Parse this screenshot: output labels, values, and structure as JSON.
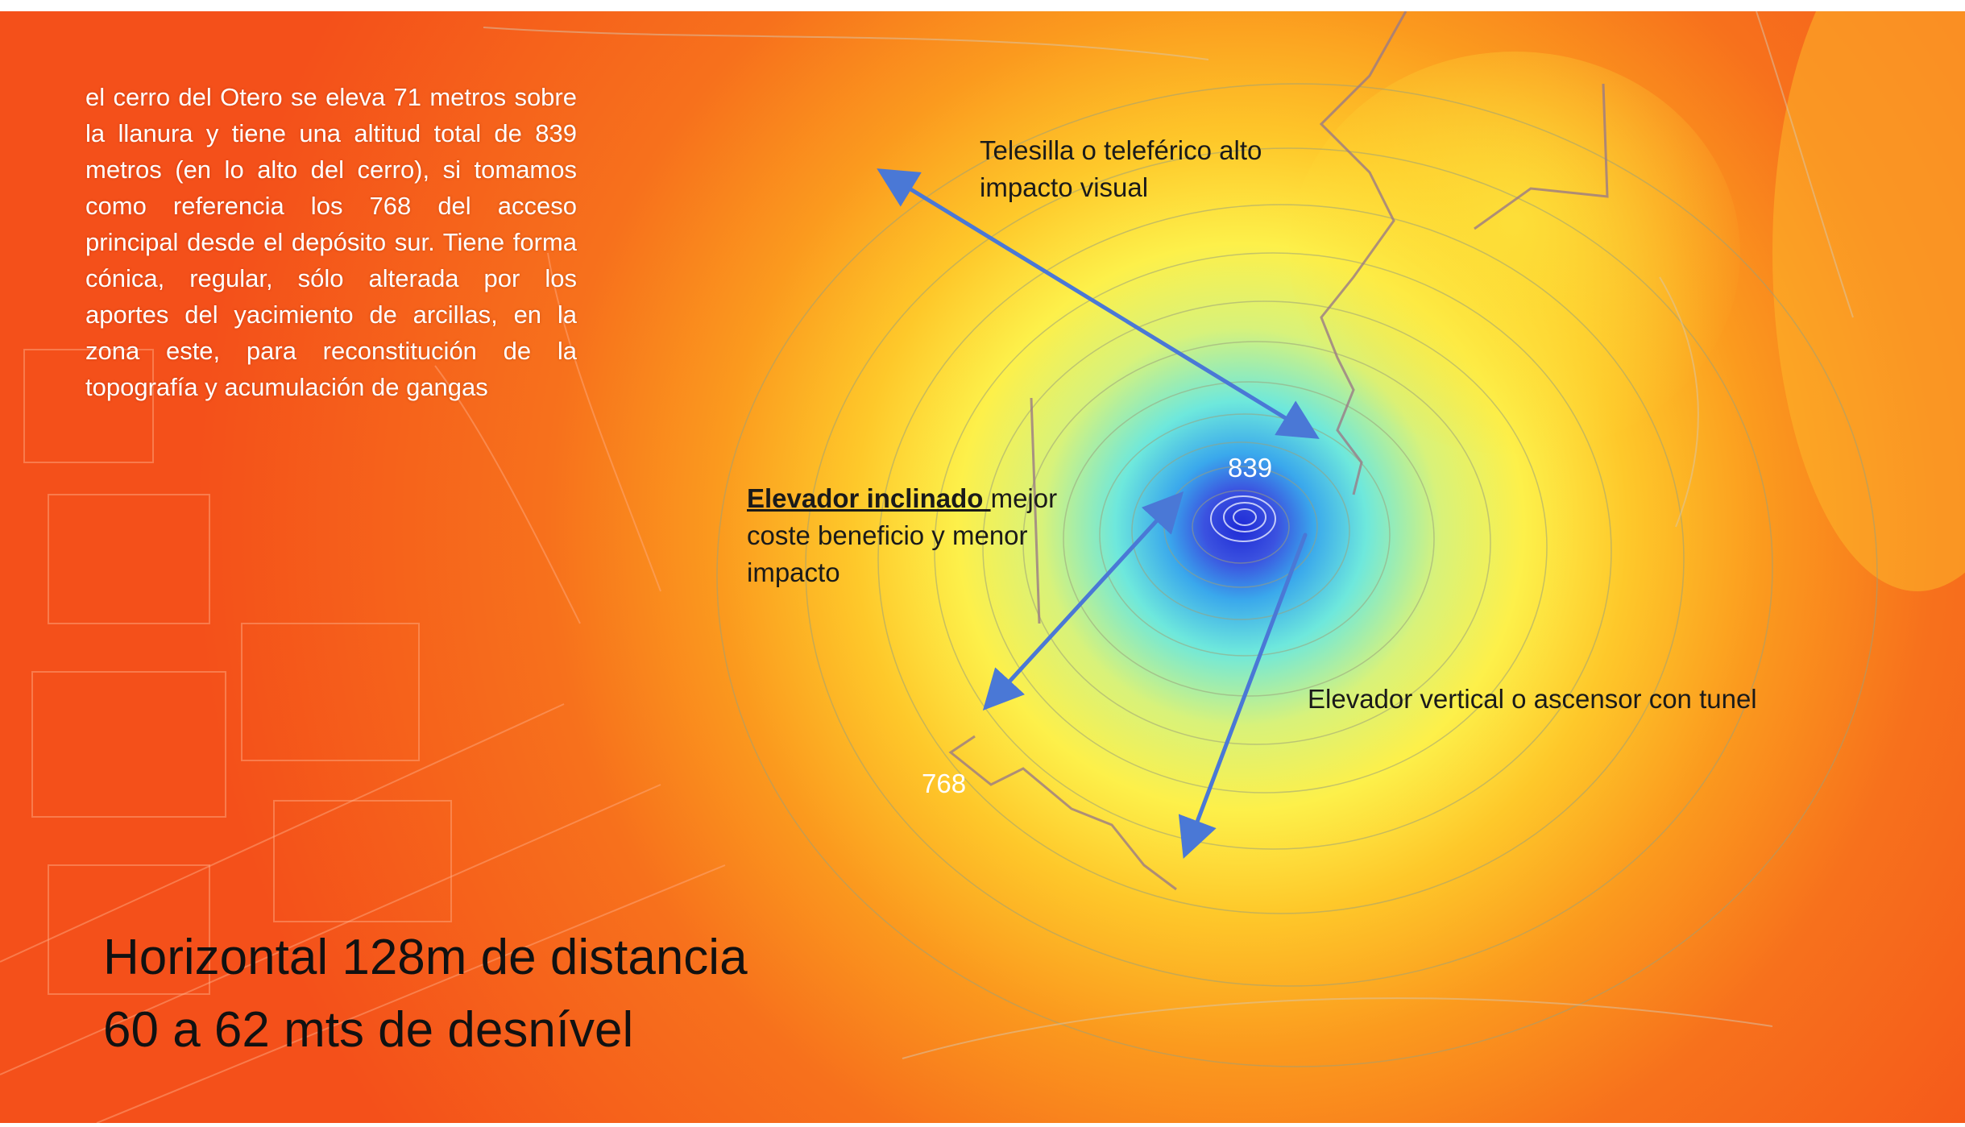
{
  "intro_text": "el cerro del Otero se eleva 71 metros sobre la llanura y tiene una altitud total de 839 metros (en lo alto del cerro), si tomamos como referencia los 768 del acceso principal desde el depósito sur. Tiene forma cónica, regular, sólo alterada por los aportes del yacimiento de arcillas, en la zona este, para reconstitución de la topografía y acumulación de gangas",
  "labels": {
    "telesilla": "Telesilla o teleférico alto impacto visual",
    "elevador_inclinado_bold": "Elevador inclinado ",
    "elevador_inclinado_rest": "mejor coste beneficio y menor impacto",
    "elevador_vertical": "Elevador vertical o ascensor con tunel"
  },
  "elevations": {
    "summit": "839",
    "access": "768"
  },
  "caption": {
    "line1": "Horizontal 128m de distancia",
    "line2": "60 a 62 mts de desnível"
  },
  "colors": {
    "background_low": "#f5521a",
    "mid_orange": "#fb8a1c",
    "yellow": "#fde83a",
    "cyan": "#6ee8dc",
    "blue_summit": "#3b52e0",
    "arrow": "#4a78d6"
  }
}
